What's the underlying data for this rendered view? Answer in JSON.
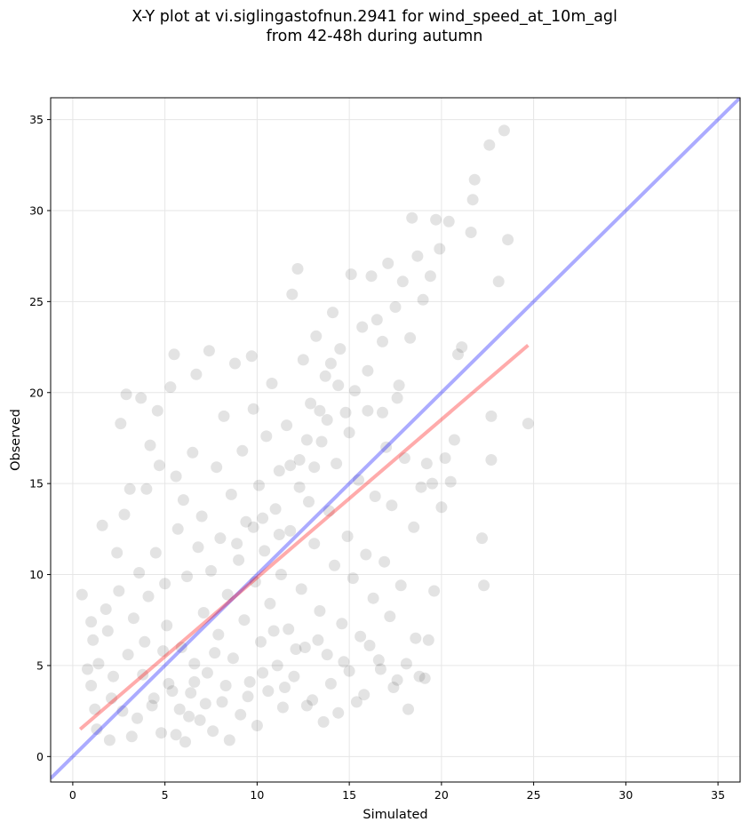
{
  "chart_data": {
    "type": "scatter",
    "title_line1": "X-Y plot at vi.siglingastofnun.2941 for wind_speed_at_10m_agl",
    "title_line2": "from 42-48h during autumn",
    "xlabel": "Simulated",
    "ylabel": "Observed",
    "xlim": [
      -1.2,
      36.2
    ],
    "ylim": [
      -1.4,
      36.2
    ],
    "xticks": [
      0,
      5,
      10,
      15,
      20,
      25,
      30,
      35
    ],
    "yticks": [
      0,
      5,
      10,
      15,
      20,
      25,
      30,
      35
    ],
    "grid": true,
    "colors": {
      "points": "#000000",
      "identity_line": "#0000ff",
      "fit_line": "#ff0000"
    },
    "identity_line": {
      "x": [
        -1.2,
        36.2
      ],
      "y": [
        -1.2,
        36.2
      ]
    },
    "fit_line": {
      "x": [
        0.4,
        24.7
      ],
      "y": [
        1.5,
        22.6
      ]
    },
    "series": [
      {
        "values": [
          [
            0.5,
            8.9
          ],
          [
            0.8,
            4.8
          ],
          [
            1.0,
            7.4
          ],
          [
            1.1,
            6.4
          ],
          [
            1.0,
            3.9
          ],
          [
            1.2,
            2.6
          ],
          [
            1.4,
            5.1
          ],
          [
            1.6,
            12.7
          ],
          [
            1.8,
            8.1
          ],
          [
            1.9,
            6.9
          ],
          [
            2.0,
            0.9
          ],
          [
            2.2,
            4.4
          ],
          [
            2.4,
            11.2
          ],
          [
            2.5,
            9.1
          ],
          [
            2.6,
            18.3
          ],
          [
            2.8,
            13.3
          ],
          [
            2.9,
            19.9
          ],
          [
            3.1,
            14.7
          ],
          [
            3.0,
            5.6
          ],
          [
            3.3,
            7.6
          ],
          [
            3.5,
            2.1
          ],
          [
            3.6,
            10.1
          ],
          [
            3.7,
            19.7
          ],
          [
            3.9,
            6.3
          ],
          [
            4.0,
            14.7
          ],
          [
            4.1,
            8.8
          ],
          [
            4.2,
            17.1
          ],
          [
            4.4,
            3.2
          ],
          [
            4.5,
            11.2
          ],
          [
            4.6,
            19.0
          ],
          [
            4.7,
            16.0
          ],
          [
            4.8,
            1.3
          ],
          [
            5.0,
            9.5
          ],
          [
            5.1,
            7.2
          ],
          [
            5.2,
            4.0
          ],
          [
            5.3,
            20.3
          ],
          [
            5.5,
            22.1
          ],
          [
            5.6,
            15.4
          ],
          [
            5.7,
            12.5
          ],
          [
            5.8,
            2.6
          ],
          [
            5.9,
            6.0
          ],
          [
            6.0,
            14.1
          ],
          [
            6.1,
            0.8
          ],
          [
            6.2,
            9.9
          ],
          [
            6.4,
            3.5
          ],
          [
            6.5,
            16.7
          ],
          [
            6.6,
            5.1
          ],
          [
            6.7,
            21.0
          ],
          [
            6.8,
            11.5
          ],
          [
            6.9,
            2.0
          ],
          [
            7.0,
            13.2
          ],
          [
            7.1,
            7.9
          ],
          [
            7.3,
            4.6
          ],
          [
            7.4,
            22.3
          ],
          [
            7.5,
            10.2
          ],
          [
            7.6,
            1.4
          ],
          [
            7.8,
            15.9
          ],
          [
            7.9,
            6.7
          ],
          [
            8.0,
            12.0
          ],
          [
            8.1,
            3.0
          ],
          [
            8.2,
            18.7
          ],
          [
            8.4,
            8.9
          ],
          [
            8.5,
            0.9
          ],
          [
            8.6,
            14.4
          ],
          [
            8.7,
            5.4
          ],
          [
            8.8,
            21.6
          ],
          [
            9.0,
            10.8
          ],
          [
            9.1,
            2.3
          ],
          [
            9.2,
            16.8
          ],
          [
            9.3,
            7.5
          ],
          [
            9.4,
            12.9
          ],
          [
            9.6,
            4.1
          ],
          [
            9.7,
            22.0
          ],
          [
            9.8,
            19.1
          ],
          [
            9.9,
            9.6
          ],
          [
            10.0,
            1.7
          ],
          [
            10.1,
            14.9
          ],
          [
            10.2,
            6.3
          ],
          [
            10.4,
            11.3
          ],
          [
            10.5,
            17.6
          ],
          [
            10.6,
            3.6
          ],
          [
            10.7,
            8.4
          ],
          [
            10.8,
            20.5
          ],
          [
            11.0,
            13.6
          ],
          [
            11.1,
            5.0
          ],
          [
            11.2,
            15.7
          ],
          [
            11.3,
            10.0
          ],
          [
            11.4,
            2.7
          ],
          [
            11.6,
            18.2
          ],
          [
            11.7,
            7.0
          ],
          [
            11.8,
            12.4
          ],
          [
            11.9,
            25.4
          ],
          [
            12.0,
            4.4
          ],
          [
            12.2,
            26.8
          ],
          [
            12.3,
            16.3
          ],
          [
            12.4,
            9.2
          ],
          [
            12.5,
            21.8
          ],
          [
            12.6,
            6.0
          ],
          [
            12.8,
            14.0
          ],
          [
            12.9,
            19.4
          ],
          [
            13.0,
            3.1
          ],
          [
            13.1,
            11.7
          ],
          [
            13.2,
            23.1
          ],
          [
            13.4,
            8.0
          ],
          [
            13.5,
            17.3
          ],
          [
            13.6,
            1.9
          ],
          [
            13.7,
            20.9
          ],
          [
            13.8,
            5.6
          ],
          [
            13.9,
            13.5
          ],
          [
            14.1,
            24.4
          ],
          [
            14.2,
            10.5
          ],
          [
            14.3,
            16.1
          ],
          [
            14.4,
            2.4
          ],
          [
            14.5,
            22.4
          ],
          [
            14.6,
            7.3
          ],
          [
            14.8,
            18.9
          ],
          [
            14.9,
            12.1
          ],
          [
            15.0,
            4.7
          ],
          [
            15.1,
            26.5
          ],
          [
            15.2,
            9.8
          ],
          [
            15.3,
            20.1
          ],
          [
            15.5,
            15.2
          ],
          [
            15.6,
            6.6
          ],
          [
            15.7,
            23.6
          ],
          [
            15.8,
            3.4
          ],
          [
            15.9,
            11.1
          ],
          [
            16.0,
            19.0
          ],
          [
            16.2,
            26.4
          ],
          [
            16.3,
            8.7
          ],
          [
            16.4,
            14.3
          ],
          [
            16.5,
            24.0
          ],
          [
            16.6,
            5.3
          ],
          [
            16.8,
            22.8
          ],
          [
            16.9,
            10.7
          ],
          [
            17.0,
            17.0
          ],
          [
            17.1,
            27.1
          ],
          [
            17.2,
            7.7
          ],
          [
            17.3,
            13.8
          ],
          [
            17.5,
            24.7
          ],
          [
            17.6,
            4.2
          ],
          [
            17.7,
            20.4
          ],
          [
            17.8,
            9.4
          ],
          [
            17.9,
            26.1
          ],
          [
            18.0,
            16.4
          ],
          [
            18.2,
            2.6
          ],
          [
            18.3,
            23.0
          ],
          [
            18.4,
            29.6
          ],
          [
            18.5,
            12.6
          ],
          [
            18.6,
            6.5
          ],
          [
            18.7,
            27.5
          ],
          [
            18.9,
            14.8
          ],
          [
            19.0,
            25.1
          ],
          [
            19.1,
            4.3
          ],
          [
            19.2,
            16.1
          ],
          [
            19.4,
            26.4
          ],
          [
            19.5,
            15.0
          ],
          [
            19.6,
            9.1
          ],
          [
            19.7,
            29.5
          ],
          [
            19.9,
            27.9
          ],
          [
            20.0,
            13.7
          ],
          [
            20.2,
            16.4
          ],
          [
            20.4,
            29.4
          ],
          [
            20.5,
            15.1
          ],
          [
            20.7,
            17.4
          ],
          [
            20.9,
            22.1
          ],
          [
            21.1,
            22.5
          ],
          [
            21.6,
            28.8
          ],
          [
            21.7,
            30.6
          ],
          [
            21.8,
            31.7
          ],
          [
            22.2,
            12.0
          ],
          [
            22.3,
            9.4
          ],
          [
            22.6,
            33.6
          ],
          [
            22.7,
            18.7
          ],
          [
            22.7,
            16.3
          ],
          [
            23.1,
            26.1
          ],
          [
            23.4,
            34.4
          ],
          [
            23.6,
            28.4
          ],
          [
            24.7,
            18.3
          ],
          [
            1.3,
            1.5
          ],
          [
            2.1,
            3.2
          ],
          [
            2.7,
            2.5
          ],
          [
            3.2,
            1.1
          ],
          [
            3.8,
            4.5
          ],
          [
            4.3,
            2.8
          ],
          [
            4.9,
            5.8
          ],
          [
            5.4,
            3.6
          ],
          [
            5.6,
            1.2
          ],
          [
            6.3,
            2.2
          ],
          [
            6.6,
            4.1
          ],
          [
            7.2,
            2.9
          ],
          [
            7.7,
            5.7
          ],
          [
            8.3,
            3.9
          ],
          [
            9.5,
            3.3
          ],
          [
            10.3,
            4.6
          ],
          [
            10.9,
            6.9
          ],
          [
            11.5,
            3.8
          ],
          [
            12.1,
            5.9
          ],
          [
            12.7,
            2.8
          ],
          [
            13.3,
            6.4
          ],
          [
            14.0,
            4.0
          ],
          [
            14.7,
            5.2
          ],
          [
            15.4,
            3.0
          ],
          [
            16.1,
            6.1
          ],
          [
            16.7,
            4.8
          ],
          [
            17.4,
            3.8
          ],
          [
            18.1,
            5.1
          ],
          [
            18.8,
            4.4
          ],
          [
            19.3,
            6.4
          ],
          [
            9.8,
            12.6
          ],
          [
            10.3,
            13.1
          ],
          [
            8.9,
            11.7
          ],
          [
            11.2,
            12.2
          ],
          [
            12.3,
            14.8
          ],
          [
            13.1,
            15.9
          ],
          [
            13.8,
            18.5
          ],
          [
            14.4,
            20.4
          ],
          [
            15.0,
            17.8
          ],
          [
            16.0,
            21.2
          ],
          [
            16.8,
            18.9
          ],
          [
            17.6,
            19.7
          ],
          [
            14.0,
            21.6
          ],
          [
            13.4,
            19.0
          ],
          [
            12.7,
            17.4
          ],
          [
            11.8,
            16.0
          ]
        ]
      }
    ]
  }
}
